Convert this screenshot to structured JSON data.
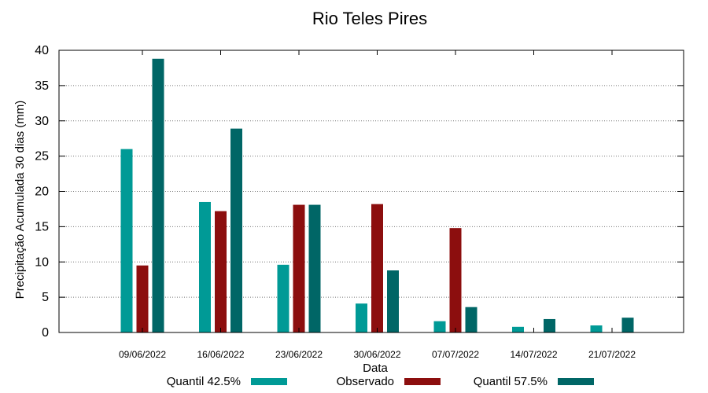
{
  "chart_data": {
    "type": "bar",
    "title": "Rio Teles Pires",
    "xlabel": "Data",
    "ylabel": "Precipitação Acumulada 30 dias (mm)",
    "ylim": [
      0,
      40
    ],
    "yticks": [
      0,
      5,
      10,
      15,
      20,
      25,
      30,
      35,
      40
    ],
    "grid": true,
    "legend_position": "bottom",
    "categories": [
      "09/06/2022",
      "16/06/2022",
      "23/06/2022",
      "30/06/2022",
      "07/07/2022",
      "14/07/2022",
      "21/07/2022"
    ],
    "series": [
      {
        "name": "Quantil 42.5%",
        "color": "#009a96",
        "values": [
          26.0,
          18.5,
          9.6,
          4.1,
          1.6,
          0.8,
          1.0
        ]
      },
      {
        "name": "Observado",
        "color": "#8c0e0e",
        "values": [
          9.5,
          17.2,
          18.1,
          18.2,
          14.8,
          null,
          null
        ]
      },
      {
        "name": "Quantil 57.5%",
        "color": "#006666",
        "values": [
          38.8,
          28.9,
          18.1,
          8.8,
          3.6,
          1.9,
          2.1
        ]
      }
    ]
  }
}
